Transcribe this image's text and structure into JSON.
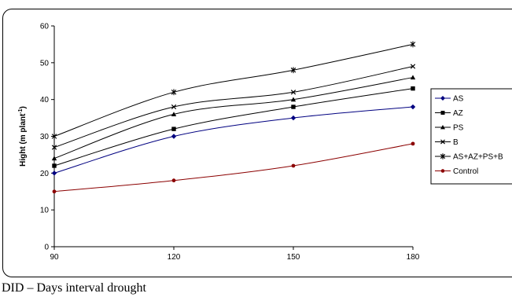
{
  "chart_data": {
    "type": "line",
    "x": [
      90,
      120,
      150,
      180
    ],
    "xticks": [
      "90",
      "120",
      "150",
      "180"
    ],
    "yticks": [
      "0",
      "10",
      "20",
      "30",
      "40",
      "50",
      "60"
    ],
    "ylim": [
      0,
      60
    ],
    "xlim": [
      90,
      180
    ],
    "ylabel_main": "Hight (m plant",
    "ylabel_sup": "-1",
    "ylabel_close": ")",
    "grid": false,
    "legend_position": "right",
    "series": [
      {
        "name": "AS",
        "marker": "diamond",
        "color": "#000080",
        "values": [
          20,
          30,
          35,
          38
        ]
      },
      {
        "name": "AZ",
        "marker": "square",
        "color": "#000000",
        "values": [
          22,
          32,
          38,
          43
        ]
      },
      {
        "name": "PS",
        "marker": "triangle",
        "color": "#000000",
        "values": [
          24,
          36,
          40,
          46
        ]
      },
      {
        "name": "B",
        "marker": "x",
        "color": "#000000",
        "values": [
          27,
          38,
          42,
          49
        ]
      },
      {
        "name": "AS+AZ+PS+B",
        "marker": "star",
        "color": "#000000",
        "values": [
          30,
          42,
          48,
          55
        ]
      },
      {
        "name": "Control",
        "marker": "circle",
        "color": "#8b0000",
        "values": [
          15,
          18,
          22,
          28
        ]
      }
    ]
  },
  "caption": "DID – Days interval drought"
}
